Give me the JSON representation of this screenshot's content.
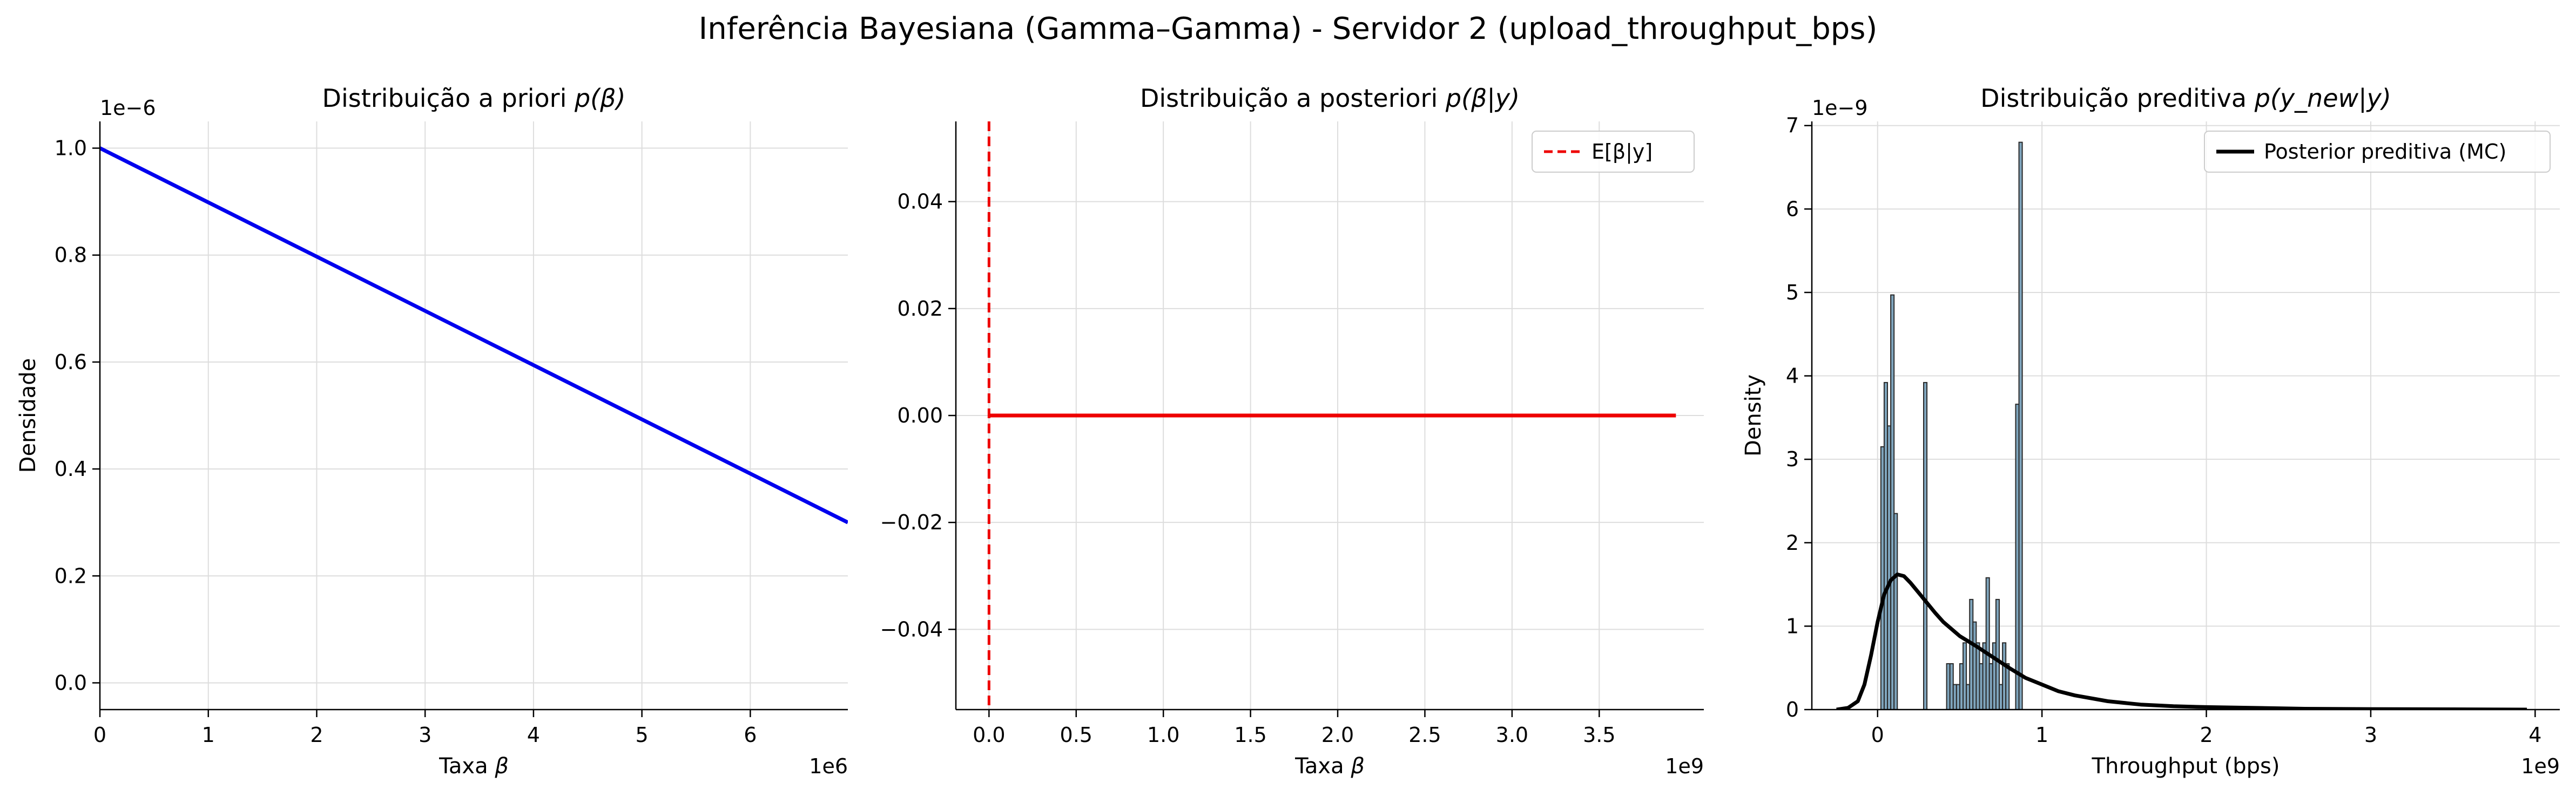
{
  "figure": {
    "title": "Inferência Bayesiana (Gamma–Gamma) - Servidor 2 (upload_throughput_bps)"
  },
  "chart_data": [
    {
      "type": "line",
      "title_pre": "Distribuição a priori ",
      "title_math": "p(β)",
      "xlabel_pre": "Taxa ",
      "xlabel_math": "β",
      "ylabel": "Densidade",
      "x_offset": "1e6",
      "y_offset": "1e−6",
      "xlim": [
        0,
        6.9
      ],
      "ylim": [
        -0.05,
        1.05
      ],
      "grid": true,
      "xticks": [
        0,
        1,
        2,
        3,
        4,
        5,
        6
      ],
      "xtick_labels": [
        "0",
        "1",
        "2",
        "3",
        "4",
        "5",
        "6"
      ],
      "yticks": [
        0.0,
        0.2,
        0.4,
        0.6,
        0.8,
        1.0
      ],
      "ytick_labels": [
        "0.0",
        "0.2",
        "0.4",
        "0.6",
        "0.8",
        "1.0"
      ],
      "series": [
        {
          "color": "#0000ee",
          "style": "solid",
          "x": [
            0,
            6.9
          ],
          "y": [
            1.0,
            0.3
          ]
        }
      ]
    },
    {
      "type": "line",
      "title_pre": "Distribuição a posteriori ",
      "title_math": "p(β|y)",
      "xlabel_pre": "Taxa ",
      "xlabel_math": "β",
      "ylabel": "",
      "x_offset": "1e9",
      "y_offset": "",
      "xlim": [
        -0.19,
        4.1
      ],
      "ylim": [
        -0.055,
        0.055
      ],
      "grid": true,
      "xticks": [
        0,
        0.5,
        1.0,
        1.5,
        2.0,
        2.5,
        3.0,
        3.5
      ],
      "xtick_labels": [
        "0.0",
        "0.5",
        "1.0",
        "1.5",
        "2.0",
        "2.5",
        "3.0",
        "3.5"
      ],
      "yticks": [
        -0.04,
        -0.02,
        0.0,
        0.02,
        0.04
      ],
      "ytick_labels": [
        "−0.04",
        "−0.02",
        "0.00",
        "0.02",
        "0.04"
      ],
      "legend_position": "top-right",
      "series": [
        {
          "color": "#ee0000",
          "style": "solid",
          "x": [
            0.0,
            3.94
          ],
          "y": [
            0.0,
            0.0
          ]
        },
        {
          "name": "E[β|y]",
          "color": "#ee0000",
          "style": "dashed",
          "vline_x": 0.0
        }
      ]
    },
    {
      "type": "bar",
      "title_pre": "Distribuição preditiva ",
      "title_math": "p(y_new|y)",
      "xlabel_pre": "Throughput (bps)",
      "xlabel_math": "",
      "ylabel": "Density",
      "x_offset": "1e9",
      "y_offset": "1e−9",
      "xlim": [
        -0.4,
        4.15
      ],
      "ylim": [
        0,
        7.05
      ],
      "grid": true,
      "xticks": [
        0,
        1,
        2,
        3,
        4
      ],
      "xtick_labels": [
        "0",
        "1",
        "2",
        "3",
        "4"
      ],
      "yticks": [
        0,
        1,
        2,
        3,
        4,
        5,
        6,
        7
      ],
      "ytick_labels": [
        "0",
        "1",
        "2",
        "3",
        "4",
        "5",
        "6",
        "7"
      ],
      "legend_position": "top-right",
      "histogram": {
        "color": "#7fa5bd",
        "edge_color": "#2b2b2b",
        "bin_width": 0.02,
        "bars": [
          [
            0.02,
            3.15
          ],
          [
            0.04,
            3.92
          ],
          [
            0.06,
            3.4
          ],
          [
            0.08,
            4.97
          ],
          [
            0.1,
            2.35
          ],
          [
            0.28,
            3.92
          ],
          [
            0.42,
            0.55
          ],
          [
            0.44,
            0.55
          ],
          [
            0.46,
            0.3
          ],
          [
            0.48,
            0.3
          ],
          [
            0.5,
            0.55
          ],
          [
            0.52,
            0.8
          ],
          [
            0.54,
            0.3
          ],
          [
            0.56,
            1.32
          ],
          [
            0.58,
            1.05
          ],
          [
            0.6,
            0.8
          ],
          [
            0.62,
            0.55
          ],
          [
            0.64,
            0.8
          ],
          [
            0.66,
            1.58
          ],
          [
            0.68,
            0.55
          ],
          [
            0.7,
            0.8
          ],
          [
            0.72,
            1.32
          ],
          [
            0.74,
            0.3
          ],
          [
            0.76,
            0.8
          ],
          [
            0.78,
            0.55
          ],
          [
            0.84,
            3.66
          ],
          [
            0.86,
            6.8
          ]
        ]
      },
      "series": [
        {
          "name": "Posterior preditiva (MC)",
          "color": "#000000",
          "style": "solid",
          "x": [
            -0.25,
            -0.18,
            -0.12,
            -0.08,
            -0.04,
            0.0,
            0.04,
            0.08,
            0.12,
            0.16,
            0.2,
            0.25,
            0.3,
            0.35,
            0.4,
            0.5,
            0.6,
            0.7,
            0.8,
            0.9,
            1.0,
            1.1,
            1.2,
            1.4,
            1.6,
            1.8,
            2.0,
            2.3,
            2.6,
            3.0,
            3.5,
            3.95
          ],
          "y": [
            0.0,
            0.02,
            0.1,
            0.3,
            0.65,
            1.05,
            1.38,
            1.55,
            1.62,
            1.6,
            1.52,
            1.4,
            1.28,
            1.16,
            1.05,
            0.88,
            0.76,
            0.63,
            0.5,
            0.38,
            0.3,
            0.22,
            0.17,
            0.1,
            0.06,
            0.04,
            0.03,
            0.02,
            0.01,
            0.006,
            0.003,
            0.0
          ]
        }
      ]
    }
  ]
}
